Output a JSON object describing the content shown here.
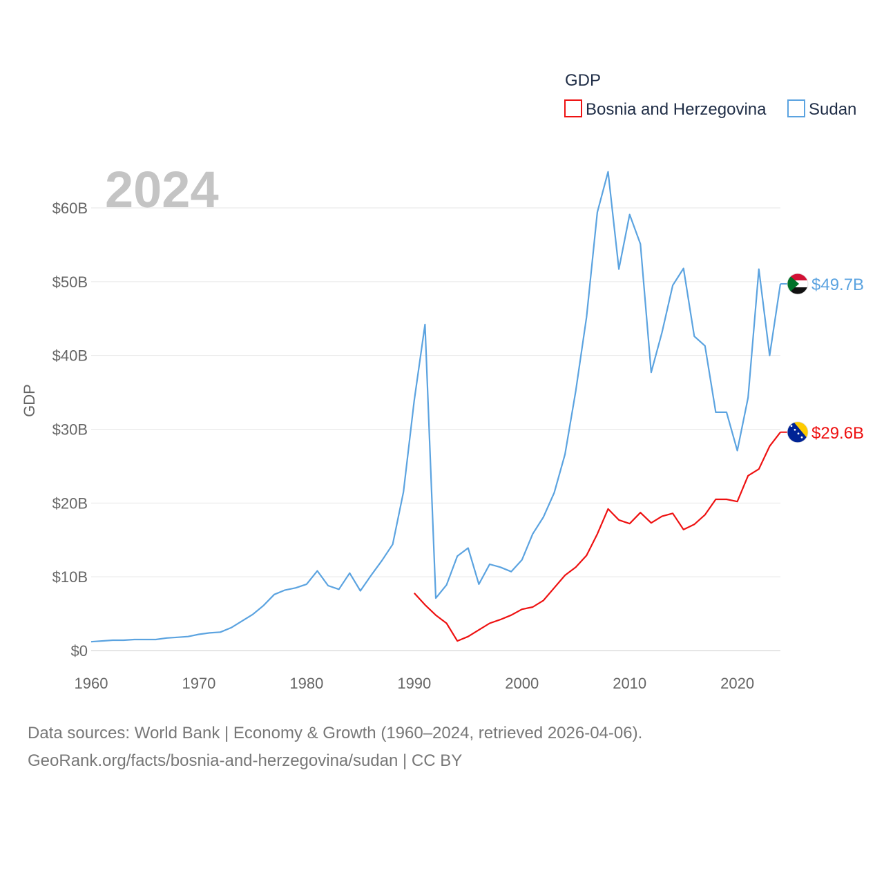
{
  "chart_data": {
    "type": "line",
    "title": "",
    "watermark_year": "2024",
    "ylabel": "GDP",
    "xlabel": "",
    "xlim": [
      1960,
      2024
    ],
    "ylim": [
      0,
      65
    ],
    "x_ticks": [
      1960,
      1970,
      1980,
      1990,
      2000,
      2010,
      2020
    ],
    "y_ticks": [
      0,
      10,
      20,
      30,
      40,
      50,
      60
    ],
    "y_tick_labels": [
      "$0",
      "$10B",
      "$20B",
      "$30B",
      "$40B",
      "$50B",
      "$60B"
    ],
    "grid": true,
    "legend": {
      "title": "GDP",
      "position": "top-right"
    },
    "series": [
      {
        "name": "Bosnia and Herzegovina",
        "color": "#ee1111",
        "end_label": "$29.6B",
        "flag_icon": "bosnia-flag-icon",
        "x": [
          1990,
          1991,
          1992,
          1993,
          1994,
          1995,
          1996,
          1997,
          1998,
          1999,
          2000,
          2001,
          2002,
          2003,
          2004,
          2005,
          2006,
          2007,
          2008,
          2009,
          2010,
          2011,
          2012,
          2013,
          2014,
          2015,
          2016,
          2017,
          2018,
          2019,
          2020,
          2021,
          2022,
          2023,
          2024
        ],
        "values": [
          7.8,
          6.2,
          4.8,
          3.7,
          1.3,
          1.9,
          2.8,
          3.7,
          4.2,
          4.8,
          5.6,
          5.9,
          6.8,
          8.5,
          10.2,
          11.3,
          12.9,
          15.8,
          19.2,
          17.7,
          17.2,
          18.7,
          17.3,
          18.2,
          18.6,
          16.4,
          17.1,
          18.4,
          20.5,
          20.5,
          20.2,
          23.7,
          24.6,
          27.7,
          29.6
        ]
      },
      {
        "name": "Sudan",
        "color": "#5ba3e0",
        "end_label": "$49.7B",
        "flag_icon": "sudan-flag-icon",
        "x": [
          1960,
          1961,
          1962,
          1963,
          1964,
          1965,
          1966,
          1967,
          1968,
          1969,
          1970,
          1971,
          1972,
          1973,
          1974,
          1975,
          1976,
          1977,
          1978,
          1979,
          1980,
          1981,
          1982,
          1983,
          1984,
          1985,
          1986,
          1987,
          1988,
          1989,
          1990,
          1991,
          1992,
          1993,
          1994,
          1995,
          1996,
          1997,
          1998,
          1999,
          2000,
          2001,
          2002,
          2003,
          2004,
          2005,
          2006,
          2007,
          2008,
          2009,
          2010,
          2011,
          2012,
          2013,
          2014,
          2015,
          2016,
          2017,
          2018,
          2019,
          2020,
          2021,
          2022,
          2023,
          2024
        ],
        "values": [
          1.2,
          1.3,
          1.4,
          1.4,
          1.5,
          1.5,
          1.5,
          1.7,
          1.8,
          1.9,
          2.2,
          2.4,
          2.5,
          3.1,
          4.0,
          4.9,
          6.1,
          7.6,
          8.2,
          8.5,
          9.0,
          10.8,
          8.8,
          8.3,
          10.5,
          8.1,
          10.2,
          12.2,
          14.4,
          21.5,
          33.9,
          44.2,
          7.1,
          8.9,
          12.8,
          13.9,
          9.0,
          11.7,
          11.3,
          10.7,
          12.3,
          15.8,
          18.1,
          21.4,
          26.6,
          35.2,
          45.2,
          59.4,
          64.9,
          51.7,
          59.1,
          55.1,
          37.7,
          43.1,
          49.5,
          51.8,
          42.6,
          41.3,
          32.3,
          32.3,
          27.1,
          34.3,
          51.7,
          40.0,
          49.7
        ]
      }
    ]
  },
  "source": {
    "line1": "Data sources: World Bank | Economy & Growth (1960–2024, retrieved 2026-04-06).",
    "line2": "GeoRank.org/facts/bosnia-and-herzegovina/sudan | CC BY"
  }
}
